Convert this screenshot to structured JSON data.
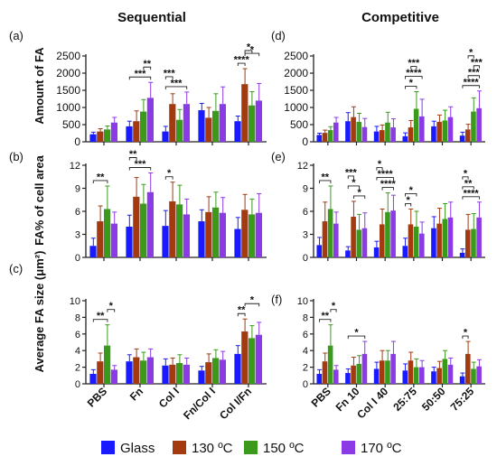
{
  "column_titles": [
    "Sequential",
    "Competitive"
  ],
  "ylabels": {
    "a": "Amount of FA",
    "b": "FA% of cell area",
    "c": "Average FA size (μm²)"
  },
  "legend": [
    {
      "label": "Glass",
      "color": "#1a1aff"
    },
    {
      "label": "130 ºC",
      "color": "#a33a10"
    },
    {
      "label": "150 ºC",
      "color": "#3b9a1c"
    },
    {
      "label": "170 ºC",
      "color": "#8a3be6"
    }
  ],
  "chart_data": [
    {
      "panel": "(a)",
      "type": "bar",
      "grid": false,
      "title": "Sequential",
      "ylabel": "Amount of FA",
      "categories": [
        "PBS",
        "Fn",
        "Col I",
        "Fn/Col I",
        "Col I/Fn"
      ],
      "ylim": [
        0,
        2500
      ],
      "yticks": [
        0,
        500,
        1000,
        1500,
        2000,
        2500
      ],
      "series": [
        {
          "name": "Glass",
          "values": [
            220,
            450,
            300,
            920,
            600
          ],
          "errors": [
            60,
            150,
            150,
            200,
            150
          ]
        },
        {
          "name": "130 ºC",
          "values": [
            300,
            600,
            1100,
            700,
            1680
          ],
          "errors": [
            80,
            300,
            300,
            300,
            450
          ]
        },
        {
          "name": "150 ºC",
          "values": [
            360,
            880,
            640,
            900,
            1060
          ],
          "errors": [
            100,
            350,
            300,
            500,
            400
          ]
        },
        {
          "name": "170 ºC",
          "values": [
            560,
            1280,
            1100,
            1100,
            1200
          ],
          "errors": [
            150,
            450,
            350,
            500,
            500
          ]
        }
      ],
      "annotations": [
        "***",
        "**",
        "***",
        "***",
        "****",
        "*",
        "*"
      ]
    },
    {
      "panel": "(d)",
      "type": "bar",
      "grid": false,
      "title": "Competitive",
      "ylabel": "",
      "categories": [
        "PBS",
        "Fn 10",
        "Col I 40",
        "25:75",
        "50:50",
        "75:25"
      ],
      "ylim": [
        0,
        2500
      ],
      "yticks": [
        0,
        500,
        1000,
        1500,
        2000,
        2500
      ],
      "series": [
        {
          "name": "Glass",
          "values": [
            200,
            600,
            300,
            160,
            450,
            180
          ],
          "errors": [
            50,
            250,
            150,
            100,
            150,
            100
          ]
        },
        {
          "name": "130 ºC",
          "values": [
            260,
            720,
            340,
            420,
            580,
            360
          ],
          "errors": [
            80,
            300,
            150,
            200,
            200,
            150
          ]
        },
        {
          "name": "150 ºC",
          "values": [
            340,
            580,
            560,
            960,
            620,
            880
          ],
          "errors": [
            100,
            250,
            300,
            500,
            300,
            400
          ]
        },
        {
          "name": "170 ºC",
          "values": [
            560,
            430,
            420,
            740,
            720,
            980
          ],
          "errors": [
            150,
            250,
            250,
            500,
            300,
            500
          ]
        }
      ],
      "annotations": [
        "*",
        "****",
        "***",
        "****",
        "***",
        "***",
        "*"
      ]
    },
    {
      "panel": "(b)",
      "type": "bar",
      "grid": false,
      "title": "",
      "ylabel": "FA% of cell area",
      "categories": [
        "PBS",
        "Fn",
        "Col I",
        "Fn/Col I",
        "Col I/Fn"
      ],
      "ylim": [
        0,
        12
      ],
      "yticks": [
        0,
        3,
        6,
        9,
        12
      ],
      "series": [
        {
          "name": "Glass",
          "values": [
            1.5,
            4.0,
            4.1,
            4.7,
            3.7
          ],
          "errors": [
            1.0,
            1.5,
            2.0,
            1.5,
            1.5
          ]
        },
        {
          "name": "130 ºC",
          "values": [
            4.7,
            7.9,
            7.3,
            5.9,
            6.2
          ],
          "errors": [
            2.0,
            2.5,
            2.5,
            2.0,
            2.0
          ]
        },
        {
          "name": "150 ºC",
          "values": [
            6.3,
            7.0,
            6.9,
            6.5,
            5.6
          ],
          "errors": [
            3.0,
            2.5,
            2.5,
            2.0,
            2.0
          ]
        },
        {
          "name": "170 ºC",
          "values": [
            4.4,
            8.5,
            5.6,
            5.8,
            5.8
          ],
          "errors": [
            1.5,
            2.5,
            2.0,
            2.0,
            2.5
          ]
        }
      ],
      "annotations": [
        "**",
        "***",
        "**",
        "*"
      ]
    },
    {
      "panel": "(e)",
      "type": "bar",
      "grid": false,
      "title": "",
      "ylabel": "",
      "categories": [
        "PBS",
        "Fn 10",
        "Col I 40",
        "25:75",
        "50:50",
        "75:25"
      ],
      "ylim": [
        0,
        12
      ],
      "yticks": [
        0,
        3,
        6,
        9,
        12
      ],
      "series": [
        {
          "name": "Glass",
          "values": [
            1.6,
            0.9,
            1.3,
            1.5,
            3.8,
            0.6
          ],
          "errors": [
            1.0,
            0.5,
            0.8,
            1.0,
            1.5,
            0.5
          ]
        },
        {
          "name": "130 ºC",
          "values": [
            4.7,
            5.3,
            4.3,
            4.3,
            4.4,
            3.6
          ],
          "errors": [
            2.5,
            2.0,
            2.0,
            2.0,
            2.0,
            2.0
          ]
        },
        {
          "name": "150 ºC",
          "values": [
            6.3,
            3.6,
            5.9,
            4.0,
            5.0,
            3.7
          ],
          "errors": [
            3.0,
            2.0,
            2.5,
            2.0,
            2.0,
            2.0
          ]
        },
        {
          "name": "170 ºC",
          "values": [
            4.4,
            3.8,
            6.1,
            3.1,
            5.2,
            5.2
          ],
          "errors": [
            1.5,
            2.0,
            2.0,
            1.5,
            2.0,
            2.0
          ]
        }
      ],
      "annotations": [
        "**",
        "*",
        "*",
        "***",
        "****",
        "****",
        "*",
        "*",
        "*",
        "****",
        "**",
        "*"
      ]
    },
    {
      "panel": "(c)",
      "type": "bar",
      "grid": false,
      "title": "",
      "ylabel": "Average FA size (μm²)",
      "categories": [
        "PBS",
        "Fn",
        "Col I",
        "Fn/Col I",
        "Col I/Fn"
      ],
      "ylim": [
        0,
        10
      ],
      "yticks": [
        0,
        2,
        4,
        6,
        8,
        10
      ],
      "series": [
        {
          "name": "Glass",
          "values": [
            1.2,
            2.7,
            2.2,
            1.6,
            3.6
          ],
          "errors": [
            0.5,
            0.8,
            0.8,
            0.5,
            1.0
          ]
        },
        {
          "name": "130 ºC",
          "values": [
            2.7,
            3.2,
            2.3,
            2.6,
            6.3
          ],
          "errors": [
            1.0,
            1.0,
            0.8,
            1.0,
            1.5
          ]
        },
        {
          "name": "150 ºC",
          "values": [
            4.6,
            2.8,
            2.5,
            3.1,
            5.5
          ],
          "errors": [
            2.5,
            1.0,
            1.0,
            1.0,
            1.5
          ]
        },
        {
          "name": "170 ºC",
          "values": [
            1.7,
            3.2,
            2.3,
            2.9,
            5.9
          ],
          "errors": [
            0.5,
            1.0,
            0.8,
            1.0,
            1.5
          ]
        }
      ],
      "annotations": [
        "**",
        "*",
        "**",
        "*"
      ]
    },
    {
      "panel": "(f)",
      "type": "bar",
      "grid": false,
      "title": "",
      "ylabel": "",
      "categories": [
        "PBS",
        "Fn 10",
        "Col I 40",
        "25:75",
        "50:50",
        "75:25"
      ],
      "ylim": [
        0,
        10
      ],
      "yticks": [
        0,
        2,
        4,
        6,
        8,
        10
      ],
      "series": [
        {
          "name": "Glass",
          "values": [
            1.2,
            1.3,
            1.8,
            1.6,
            1.5,
            0.9
          ],
          "errors": [
            0.5,
            0.5,
            0.8,
            0.8,
            0.5,
            0.4
          ]
        },
        {
          "name": "130 ºC",
          "values": [
            2.7,
            2.2,
            2.8,
            2.8,
            1.9,
            3.6
          ],
          "errors": [
            1.0,
            1.0,
            1.2,
            1.0,
            0.8,
            1.5
          ]
        },
        {
          "name": "150 ºC",
          "values": [
            4.6,
            2.4,
            2.8,
            2.0,
            3.0,
            1.8
          ],
          "errors": [
            2.5,
            1.0,
            1.2,
            1.0,
            1.0,
            0.8
          ]
        },
        {
          "name": "170 ºC",
          "values": [
            1.7,
            3.6,
            3.6,
            2.0,
            2.3,
            2.1
          ],
          "errors": [
            0.5,
            1.5,
            1.5,
            0.8,
            0.8,
            0.8
          ]
        }
      ],
      "annotations": [
        "**",
        "*",
        "*",
        "*"
      ]
    }
  ]
}
